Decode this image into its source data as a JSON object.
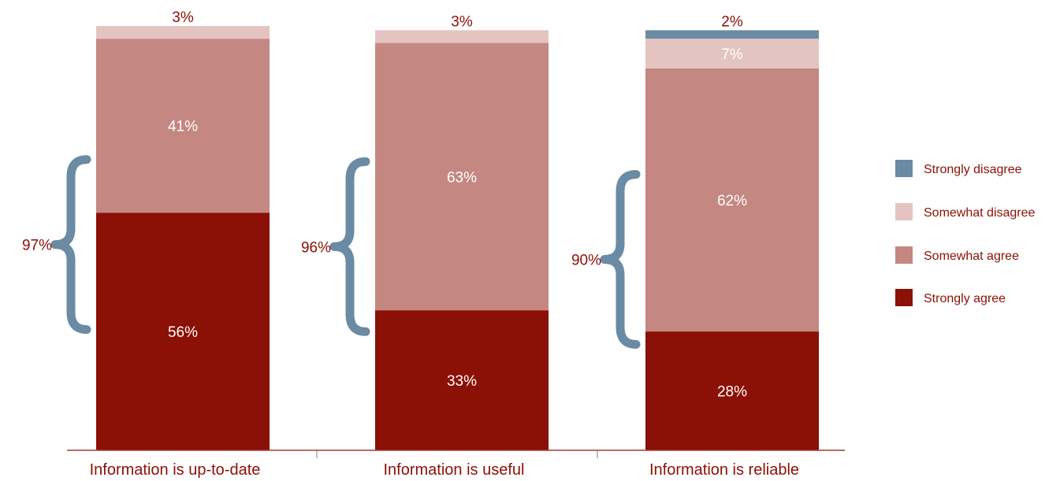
{
  "chart_data": {
    "type": "bar",
    "stacked": true,
    "categories": [
      "Information is up-to-date",
      "Information is useful",
      "Information is reliable"
    ],
    "series": [
      {
        "name": "Strongly agree",
        "color": "#8b1006",
        "values": [
          56,
          33,
          28
        ]
      },
      {
        "name": "Somewhat agree",
        "color": "#c58781",
        "values": [
          41,
          63,
          62
        ]
      },
      {
        "name": "Somewhat disagree",
        "color": "#e4c4c1",
        "values": [
          3,
          3,
          7
        ]
      },
      {
        "name": "Strongly disagree",
        "color": "#6a8ba3",
        "values": [
          0,
          0,
          2
        ]
      }
    ],
    "data_labels": [
      [
        "56%",
        "41%",
        "3%",
        ""
      ],
      [
        "33%",
        "63%",
        "3%",
        ""
      ],
      [
        "28%",
        "62%",
        "7%",
        "2%"
      ]
    ],
    "agree_totals": [
      "97%",
      "96%",
      "90%"
    ],
    "legend": {
      "position": "right",
      "order": [
        "Strongly disagree",
        "Somewhat disagree",
        "Somewhat agree",
        "Strongly agree"
      ]
    },
    "ylim": [
      0,
      100
    ],
    "grid": false,
    "colors": {
      "text": "#8b1006",
      "axis": "#a33a35",
      "brace": "#6a8ba3",
      "inner_label": "#ffffff"
    }
  }
}
